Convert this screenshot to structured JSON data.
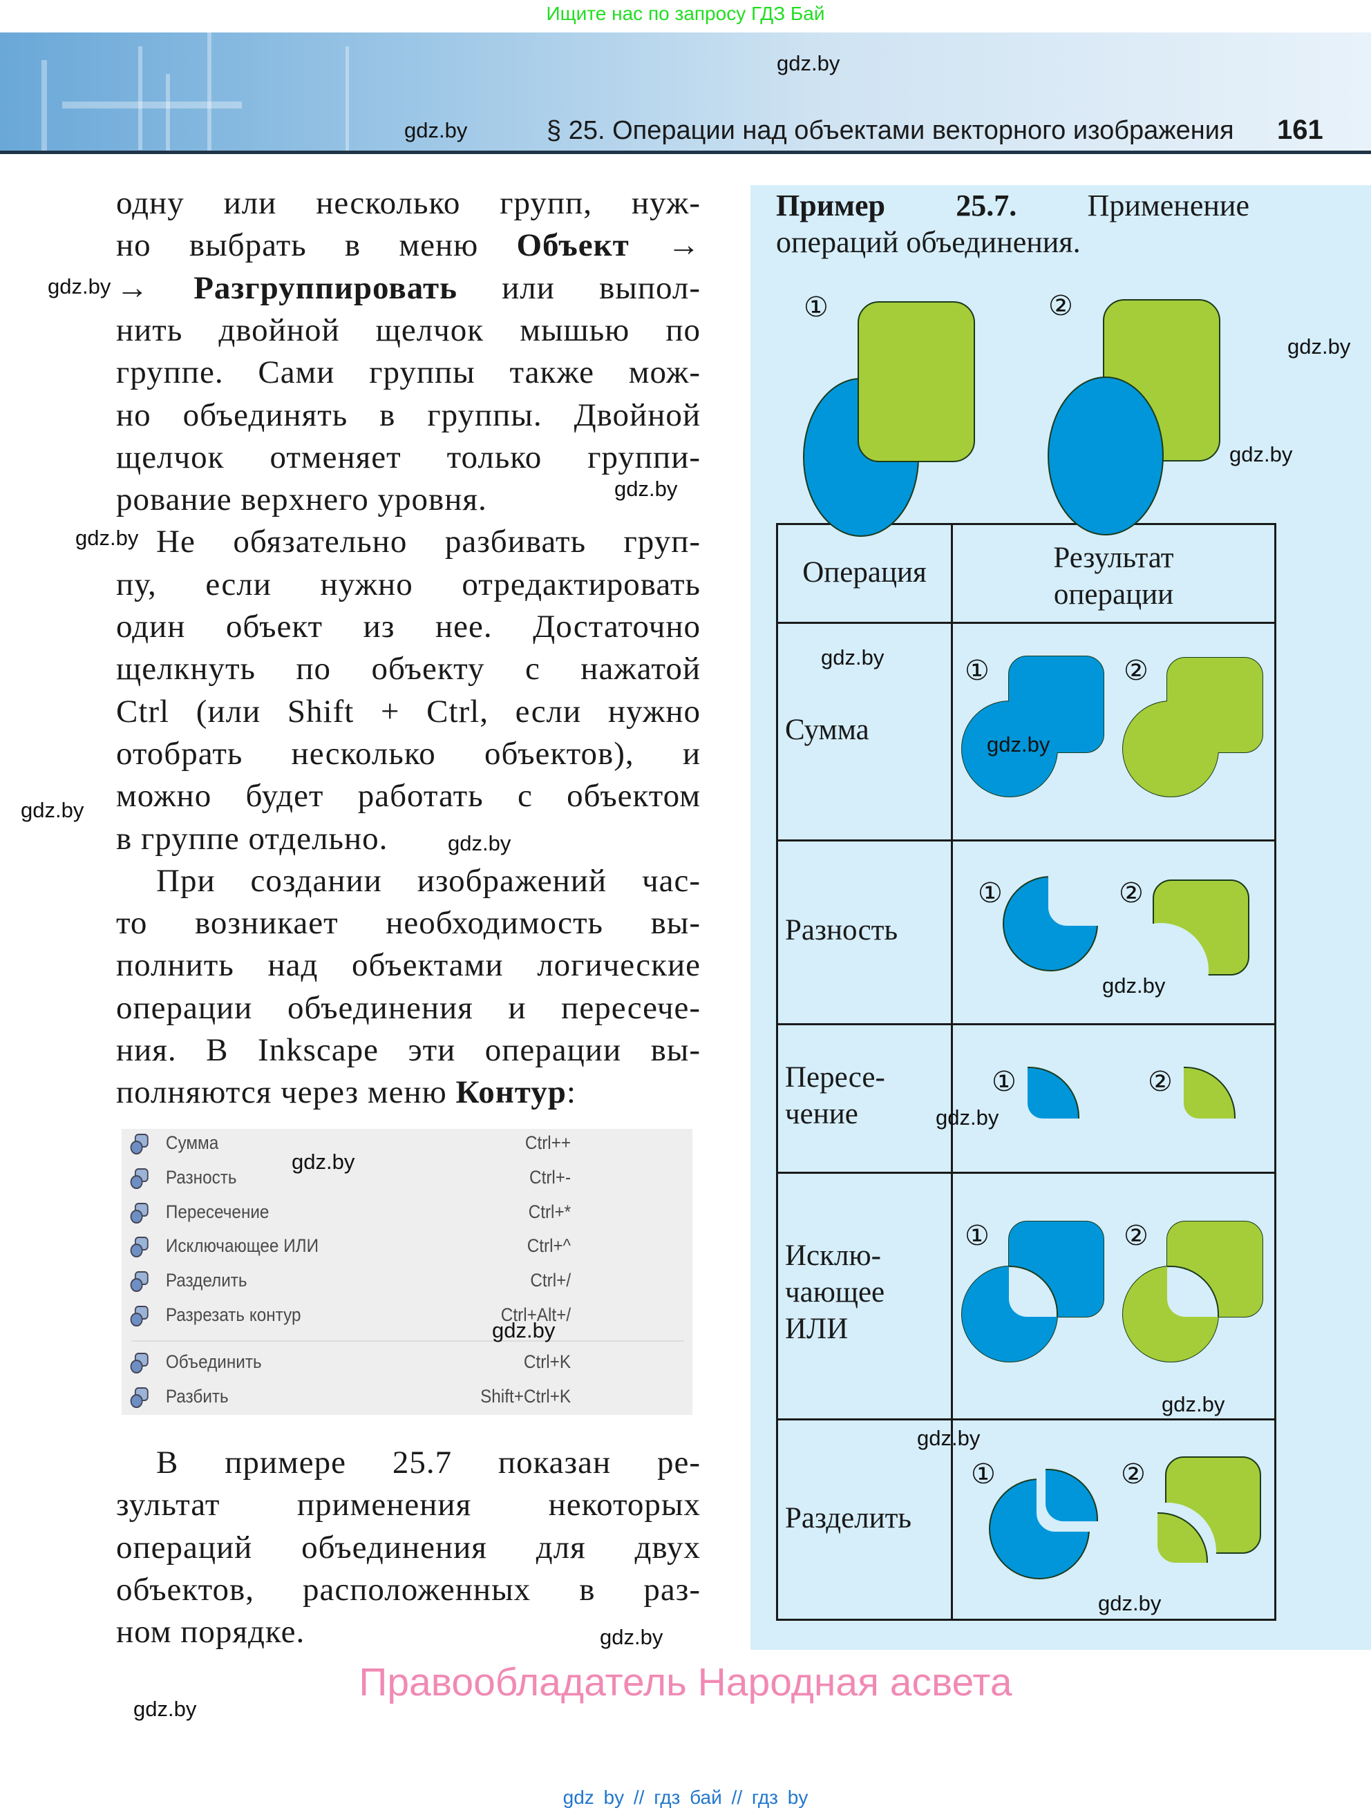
{
  "top_note": "Ищите нас по запросу ГДЗ Бай",
  "header": {
    "section_title": "§ 25. Операции над объектами векторного изображения",
    "page_number": "161"
  },
  "body_text": {
    "lines_before_menu": [
      [
        {
          "t": "одну или несколько групп, нуж-"
        }
      ],
      [
        {
          "t": "но выбрать в меню "
        },
        {
          "t": "Объект",
          "b": true
        },
        {
          "t": " →"
        }
      ],
      [
        {
          "t": "→ "
        },
        {
          "t": "Разгруппировать",
          "b": true
        },
        {
          "t": " или выпол-"
        }
      ],
      [
        {
          "t": "нить двойной щелчок мышью по"
        }
      ],
      [
        {
          "t": "группе. Сами группы также мож-"
        }
      ],
      [
        {
          "t": "но объединять в группы. Двойной"
        }
      ],
      [
        {
          "t": "щелчок отменяет только группи-"
        }
      ],
      [
        {
          "t": "рование верхнего уровня."
        }
      ],
      [
        {
          "t": "Не обязательно разбивать груп-"
        }
      ],
      [
        {
          "t": "пу, если нужно отредактировать"
        }
      ],
      [
        {
          "t": "один объект из нее. Достаточно"
        }
      ],
      [
        {
          "t": "щелкнуть по объекту с нажатой"
        }
      ],
      [
        {
          "t": "Ctrl (или Shift + Ctrl, если нужно"
        }
      ],
      [
        {
          "t": "отобрать несколько объектов), и"
        }
      ],
      [
        {
          "t": "можно будет работать с объектом"
        }
      ],
      [
        {
          "t": "в группе отдельно."
        }
      ],
      [
        {
          "t": "При создании изображений час-"
        }
      ],
      [
        {
          "t": "то возникает необходимость вы-"
        }
      ],
      [
        {
          "t": "полнить над объектами логические"
        }
      ],
      [
        {
          "t": "операции объединения и пересече-"
        }
      ],
      [
        {
          "t": "ния. В Inkscape эти операции вы-"
        }
      ],
      [
        {
          "t": "полняются через меню "
        },
        {
          "t": "Контур",
          "b": true
        },
        {
          "t": ":"
        }
      ]
    ],
    "lines_after_menu": [
      [
        {
          "t": "В примере 25.7 показан ре-"
        }
      ],
      [
        {
          "t": "зультат применения некоторых"
        }
      ],
      [
        {
          "t": "операций объединения для двух"
        }
      ],
      [
        {
          "t": "объектов, расположенных в раз-"
        }
      ],
      [
        {
          "t": "ном порядке."
        }
      ]
    ]
  },
  "menu": {
    "items": [
      {
        "label": "Сумма",
        "shortcut": "Ctrl++",
        "icon": "path-union-icon"
      },
      {
        "label": "Разность",
        "shortcut": "Ctrl+-",
        "icon": "path-difference-icon"
      },
      {
        "label": "Пересечение",
        "shortcut": "Ctrl+*",
        "icon": "path-intersection-icon"
      },
      {
        "label": "Исключающее ИЛИ",
        "shortcut": "Ctrl+^",
        "icon": "path-exclusion-icon"
      },
      {
        "label": "Разделить",
        "shortcut": "Ctrl+/",
        "icon": "path-division-icon"
      },
      {
        "label": "Разрезать контур",
        "shortcut": "Ctrl+Alt+/",
        "icon": "path-cut-icon"
      },
      {
        "label": "Объединить",
        "shortcut": "Ctrl+K",
        "icon": "path-combine-icon"
      },
      {
        "label": "Разбить",
        "shortcut": "Shift+Ctrl+K",
        "icon": "path-break-apart-icon"
      }
    ]
  },
  "example": {
    "label": "Пример 25.7.",
    "title_rest": "Применение",
    "title_line2": "операций объединения.",
    "markers": [
      "①",
      "②"
    ],
    "table": {
      "headers": [
        "Операция",
        "Результат",
        "операции"
      ],
      "rows": [
        {
          "operation": [
            "Сумма"
          ]
        },
        {
          "operation": [
            "Разность"
          ]
        },
        {
          "operation": [
            "Пересе-",
            "чение"
          ]
        },
        {
          "operation": [
            "Исклю-",
            "чающее",
            "ИЛИ"
          ]
        },
        {
          "operation": [
            "Разделить"
          ]
        }
      ]
    }
  },
  "colors": {
    "blue": "#0096d9",
    "green": "#a5cd39",
    "panel": "#d5eefa",
    "outline": "#1c3a1c"
  },
  "watermark": "gdz.by",
  "copyright": "Правообладатель Народная асвета",
  "bottom_links": "gdz by  //  гдз бай  //  гдз by"
}
